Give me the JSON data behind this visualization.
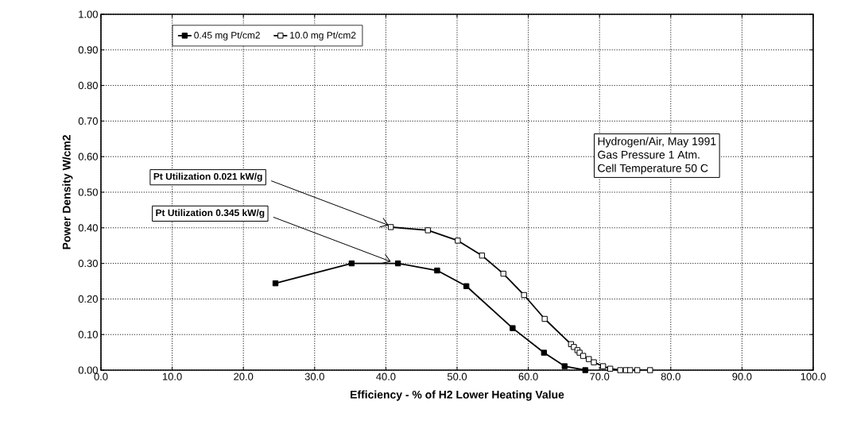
{
  "chart_data": {
    "type": "line",
    "xlabel": "Efficiency  -  % of H2 Lower Heating Value",
    "ylabel": "Power Density  W/cm2",
    "xlim": [
      0,
      100
    ],
    "ylim": [
      0,
      1
    ],
    "xticks": [
      {
        "value": 0,
        "label": "0.0"
      },
      {
        "value": 10,
        "label": "10.0"
      },
      {
        "value": 20,
        "label": "20.0"
      },
      {
        "value": 30,
        "label": "30.0"
      },
      {
        "value": 40,
        "label": "40.0"
      },
      {
        "value": 50,
        "label": "50.0"
      },
      {
        "value": 60,
        "label": "60.0"
      },
      {
        "value": 70,
        "label": "70.0"
      },
      {
        "value": 80,
        "label": "80.0"
      },
      {
        "value": 90,
        "label": "90.0"
      },
      {
        "value": 100,
        "label": "100.0"
      }
    ],
    "yticks": [
      {
        "value": 0,
        "label": "0.00"
      },
      {
        "value": 0.1,
        "label": "0.10"
      },
      {
        "value": 0.2,
        "label": "0.20"
      },
      {
        "value": 0.3,
        "label": "0.30"
      },
      {
        "value": 0.4,
        "label": "0.40"
      },
      {
        "value": 0.5,
        "label": "0.50"
      },
      {
        "value": 0.6,
        "label": "0.60"
      },
      {
        "value": 0.7,
        "label": "0.70"
      },
      {
        "value": 0.8,
        "label": "0.80"
      },
      {
        "value": 0.9,
        "label": "0.90"
      },
      {
        "value": 1,
        "label": "1.00"
      }
    ],
    "grid": true,
    "legend": "top",
    "marker": "square",
    "line_style": "solid",
    "series": [
      {
        "name": "0.45 mg Pt/cm2",
        "color": "#000000",
        "x": [
          24.5,
          35.2,
          41.7,
          47.2,
          51.3,
          57.8,
          62.2,
          65.1,
          68.0
        ],
        "values": [
          0.244,
          0.3,
          0.3,
          0.28,
          0.236,
          0.118,
          0.049,
          0.011,
          0.0
        ]
      },
      {
        "name": "10.0 mg Pt/cm2",
        "color": "#000000",
        "x": [
          40.7,
          45.9,
          50.1,
          53.5,
          56.5,
          59.4,
          62.3,
          66.0,
          66.4,
          66.9,
          67.2,
          67.7,
          68.5,
          69.2,
          70.5,
          71.5,
          72.9,
          73.7,
          74.3,
          75.3,
          77.1
        ],
        "values": [
          0.402,
          0.393,
          0.364,
          0.322,
          0.271,
          0.211,
          0.144,
          0.073,
          0.065,
          0.056,
          0.049,
          0.04,
          0.031,
          0.022,
          0.011,
          0.004,
          0.0,
          0.0,
          0.0,
          0.0,
          0.0
        ]
      }
    ],
    "annotations": [
      {
        "text": "Pt Utilization  0.021 kW/g",
        "x": 40.7,
        "y": 0.402
      },
      {
        "text": "Pt Utilization  0.345 kW/g",
        "x": 41.0,
        "y": 0.3
      },
      "Hydrogen/Air, May 1991",
      "Gas Pressure  1 Atm.",
      "Cell Temperature  50 C"
    ]
  }
}
